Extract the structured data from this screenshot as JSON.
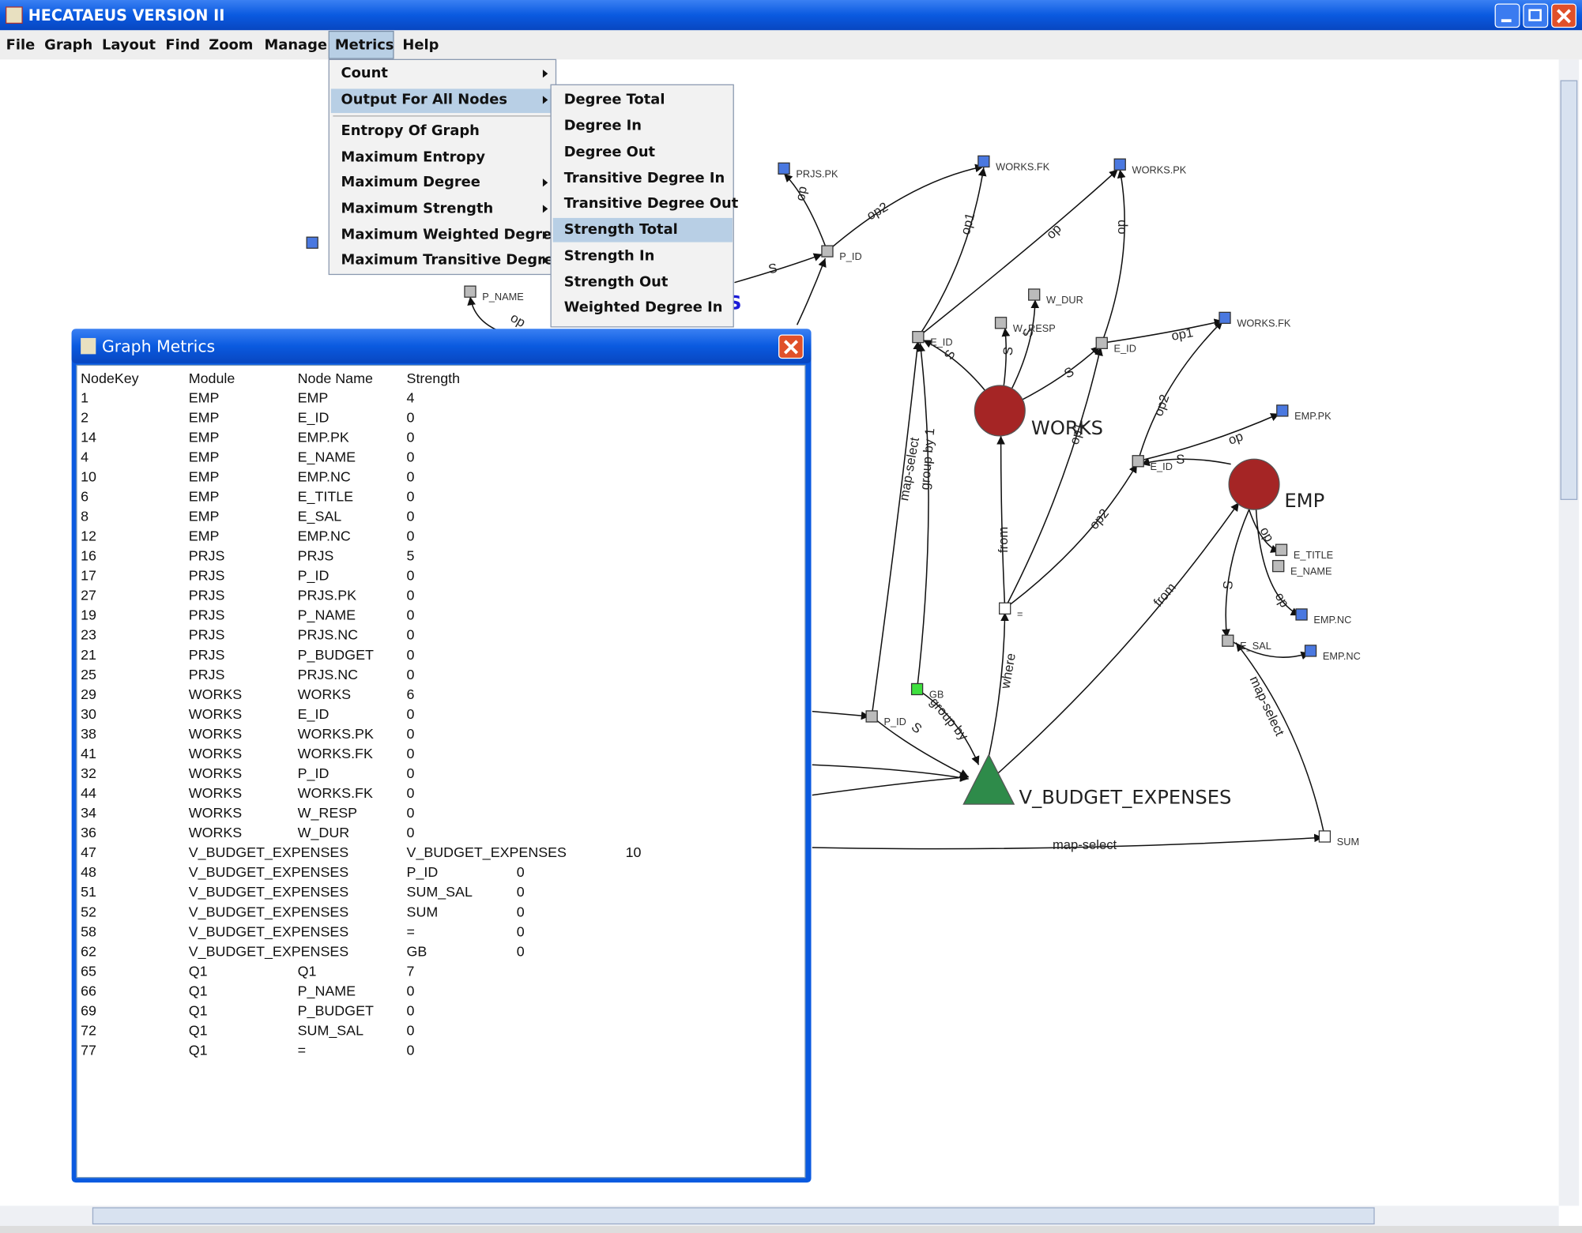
{
  "window": {
    "title": "HECATAEUS VERSION II"
  },
  "menu_bar": [
    "File",
    "Graph",
    "Layout",
    "Find",
    "Zoom",
    "Manage",
    "Metrics",
    "Help"
  ],
  "metrics_menu": [
    "Count",
    "Output For All Nodes",
    "Entropy Of Graph",
    "Maximum Entropy",
    "Maximum Degree",
    "Maximum Strength",
    "Maximum Weighted Degree",
    "Maximum Transitive Degree"
  ],
  "output_submenu": [
    "Degree Total",
    "Degree In",
    "Degree Out",
    "Transitive Degree In",
    "Transitive Degree Out",
    "Strength Total",
    "Strength In",
    "Strength Out",
    "Weighted Degree In"
  ],
  "dialog": {
    "title": "Graph Metrics",
    "columns": [
      "NodeKey",
      "Module",
      "Node Name",
      "Strength"
    ],
    "rows": [
      [
        1,
        "EMP",
        "EMP",
        4
      ],
      [
        2,
        "EMP",
        "E_ID",
        0
      ],
      [
        14,
        "EMP",
        "EMP.PK",
        0
      ],
      [
        4,
        "EMP",
        "E_NAME",
        0
      ],
      [
        10,
        "EMP",
        "EMP.NC",
        0
      ],
      [
        6,
        "EMP",
        "E_TITLE",
        0
      ],
      [
        8,
        "EMP",
        "E_SAL",
        0
      ],
      [
        12,
        "EMP",
        "EMP.NC",
        0
      ],
      [
        16,
        "PRJS",
        "PRJS",
        5
      ],
      [
        17,
        "PRJS",
        "P_ID",
        0
      ],
      [
        27,
        "PRJS",
        "PRJS.PK",
        0
      ],
      [
        19,
        "PRJS",
        "P_NAME",
        0
      ],
      [
        23,
        "PRJS",
        "PRJS.NC",
        0
      ],
      [
        21,
        "PRJS",
        "P_BUDGET",
        0
      ],
      [
        25,
        "PRJS",
        "PRJS.NC",
        0
      ],
      [
        29,
        "WORKS",
        "WORKS",
        6
      ],
      [
        30,
        "WORKS",
        "E_ID",
        0
      ],
      [
        38,
        "WORKS",
        "WORKS.PK",
        0
      ],
      [
        41,
        "WORKS",
        "WORKS.FK",
        0
      ],
      [
        32,
        "WORKS",
        "P_ID",
        0
      ],
      [
        44,
        "WORKS",
        "WORKS.FK",
        0
      ],
      [
        34,
        "WORKS",
        "W_RESP",
        0
      ],
      [
        36,
        "WORKS",
        "W_DUR",
        0
      ],
      [
        47,
        "V_BUDGET_EXPENSES",
        "V_BUDGET_EXPENSES",
        10
      ],
      [
        48,
        "V_BUDGET_EXPENSES",
        "P_ID",
        0
      ],
      [
        51,
        "V_BUDGET_EXPENSES",
        "SUM_SAL",
        0
      ],
      [
        52,
        "V_BUDGET_EXPENSES",
        "SUM",
        0
      ],
      [
        58,
        "V_BUDGET_EXPENSES",
        "=",
        0
      ],
      [
        62,
        "V_BUDGET_EXPENSES",
        "GB",
        0
      ],
      [
        65,
        "Q1",
        "Q1",
        7
      ],
      [
        66,
        "Q1",
        "P_NAME",
        0
      ],
      [
        69,
        "Q1",
        "P_BUDGET",
        0
      ],
      [
        72,
        "Q1",
        "SUM_SAL",
        0
      ],
      [
        77,
        "Q1",
        "=",
        0
      ]
    ]
  },
  "graph": {
    "big_nodes": [
      "WORKS",
      "EMP",
      "V_BUDGET_EXPENSES",
      "US"
    ],
    "small_nodes": [
      "PRJS.PK",
      "P_ID",
      "WORKS.FK",
      "WORKS.PK",
      "W_DUR",
      "W_RESP",
      "E_ID",
      "E_ID",
      "WORKS.FK",
      "EMP.PK",
      "E_ID",
      "E_TITLE",
      "E_NAME",
      "EMP.NC",
      "=",
      "E_SAL",
      "EMP.NC",
      "GB",
      "P_ID",
      "SUM",
      "P_NAME"
    ],
    "edge_labels": [
      "op",
      "op2",
      "S",
      "op1",
      "op",
      "op",
      "op1",
      "S",
      "S",
      "S",
      "S",
      "op2",
      "op",
      "S",
      "from",
      "op1",
      "op2",
      "where",
      "from",
      "S",
      "op",
      "op",
      "map-select",
      "map-select",
      "group by",
      "S",
      "map-select",
      "group by 1",
      "op"
    ]
  }
}
